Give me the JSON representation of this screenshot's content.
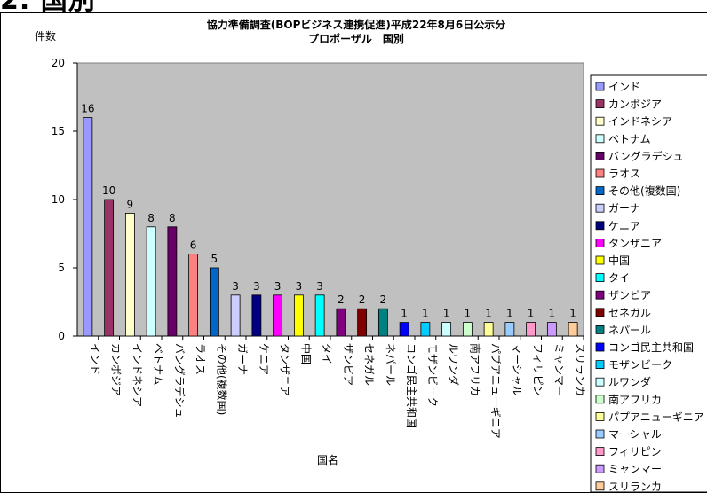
{
  "page": {
    "heading_fragment": "2. 国別"
  },
  "chart_data": {
    "type": "bar",
    "title": "協力準備調査(BOPビジネス連携促進)平成22年8月6日公示分",
    "subtitle": "プロポーザル　国別",
    "ylabel": "件数",
    "xlabel": "国名",
    "ylim": [
      0,
      20
    ],
    "yticks": [
      0,
      5,
      10,
      15,
      20
    ],
    "grid": false,
    "legend": "right",
    "plot_bg": "#C0C0C0",
    "categories": [
      "インド",
      "カンボジア",
      "インドネシア",
      "ベトナム",
      "バングラデシュ",
      "ラオス",
      "その他(複数国)",
      "ガーナ",
      "ケニア",
      "タンザニア",
      "中国",
      "タイ",
      "ザンビア",
      "セネガル",
      "ネパール",
      "コンゴ民主共和国",
      "モザンビーク",
      "ルワンダ",
      "南アフリカ",
      "パプアニューギニア",
      "マーシャル",
      "フィリピン",
      "ミャンマー",
      "スリランカ"
    ],
    "values": [
      16,
      10,
      9,
      8,
      8,
      6,
      5,
      3,
      3,
      3,
      3,
      3,
      2,
      2,
      2,
      1,
      1,
      1,
      1,
      1,
      1,
      1,
      1,
      1
    ],
    "colors": [
      "#9999FF",
      "#993366",
      "#FFFFCC",
      "#CCFFFF",
      "#660066",
      "#FF8080",
      "#0066CC",
      "#CCCCFF",
      "#000080",
      "#FF00FF",
      "#FFFF00",
      "#00FFFF",
      "#800080",
      "#800000",
      "#008080",
      "#0000FF",
      "#00CCFF",
      "#CCFFFF",
      "#CCFFCC",
      "#FFFF99",
      "#99CCFF",
      "#FF99CC",
      "#CC99FF",
      "#FFCC99"
    ],
    "legend_entries": [
      "インド",
      "カンボジア",
      "インドネシア",
      "ベトナム",
      "バングラデシュ",
      "ラオス",
      "その他(複数国)",
      "ガーナ",
      "ケニア",
      "タンザニア",
      "中国",
      "タイ",
      "ザンビア",
      "セネガル",
      "ネパール",
      "コンゴ民主共和国",
      "モザンビーク",
      "ルワンダ",
      "南アフリカ",
      "パプアニューギニア",
      "マーシャル",
      "フィリピン",
      "ミャンマー",
      "スリランカ"
    ]
  }
}
